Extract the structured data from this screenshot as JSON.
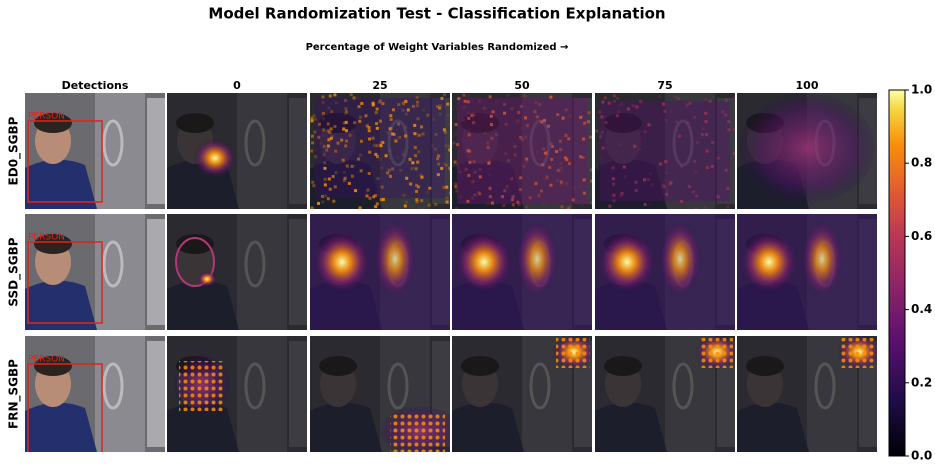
{
  "title": "Model Randomization Test - Classification Explanation",
  "subtitle": "Percentage of Weight Variables Randomized →",
  "columns": [
    "Detections",
    "0",
    "25",
    "50",
    "75",
    "100"
  ],
  "rows": [
    {
      "label": "ED0_SGBP",
      "detection_label": "PERSON"
    },
    {
      "label": "SSD_SGBP",
      "detection_label": "PERSON"
    },
    {
      "label": "FRN_SGBP",
      "detection_label": "PERSON"
    }
  ],
  "colorbar": {
    "lim": [
      0,
      1
    ],
    "ticks": [
      {
        "value": 0,
        "label": "0.0"
      },
      0.2,
      0.4,
      0.6,
      0.8,
      {
        "value": 1,
        "label": "1.0"
      }
    ]
  }
}
